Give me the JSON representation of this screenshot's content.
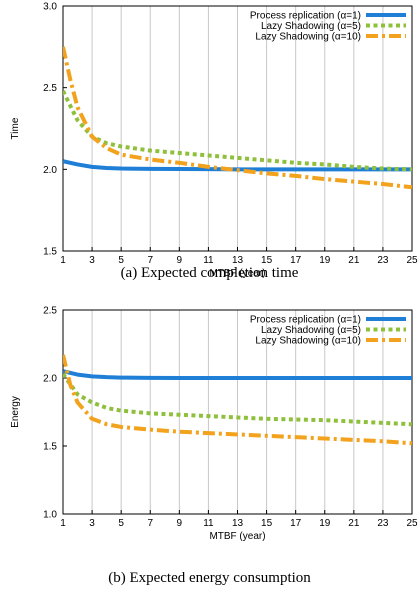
{
  "chart_data": [
    {
      "type": "line",
      "caption": "(a) Expected completion time",
      "xlabel": "MTBF (year)",
      "ylabel": "Time",
      "xlim": [
        1,
        25
      ],
      "ylim": [
        1.5,
        3.0
      ],
      "xticks": [
        "1",
        "3",
        "5",
        "7",
        "9",
        "11",
        "13",
        "15",
        "17",
        "19",
        "21",
        "23",
        "25"
      ],
      "yticks": [
        "1.5",
        "2.0",
        "2.5",
        "3.0"
      ],
      "grid": "vertical",
      "legend": "top-right",
      "series": [
        {
          "name": "Process replication (α=1)",
          "color": "#1f7fd6",
          "style": "solid",
          "x": [
            1,
            2,
            3,
            4,
            5,
            7,
            9,
            11,
            13,
            15,
            17,
            19,
            21,
            23,
            25
          ],
          "y": [
            2.05,
            2.03,
            2.015,
            2.008,
            2.005,
            2.003,
            2.002,
            2.001,
            2.0,
            2.0,
            2.0,
            2.0,
            2.0,
            2.0,
            2.0
          ]
        },
        {
          "name": "Lazy Shadowing (α=5)",
          "color": "#8fc03c",
          "style": "dotted",
          "x": [
            1,
            2,
            3,
            4,
            5,
            7,
            9,
            11,
            13,
            15,
            17,
            19,
            21,
            23,
            25
          ],
          "y": [
            2.48,
            2.3,
            2.2,
            2.16,
            2.14,
            2.115,
            2.1,
            2.085,
            2.07,
            2.055,
            2.04,
            2.03,
            2.015,
            2.005,
            2.0
          ]
        },
        {
          "name": "Lazy Shadowing (α=10)",
          "color": "#f2a21c",
          "style": "dashdot",
          "x": [
            1,
            1.5,
            2,
            3,
            4,
            5,
            7,
            9,
            11,
            13,
            15,
            17,
            19,
            21,
            23,
            25
          ],
          "y": [
            2.75,
            2.55,
            2.38,
            2.2,
            2.13,
            2.09,
            2.06,
            2.04,
            2.015,
            1.995,
            1.975,
            1.96,
            1.94,
            1.925,
            1.91,
            1.89
          ]
        }
      ]
    },
    {
      "type": "line",
      "caption": "(b) Expected energy consumption",
      "xlabel": "MTBF (year)",
      "ylabel": "Energy",
      "xlim": [
        1,
        25
      ],
      "ylim": [
        1.0,
        2.5
      ],
      "xticks": [
        "1",
        "3",
        "5",
        "7",
        "9",
        "11",
        "13",
        "15",
        "17",
        "19",
        "21",
        "23",
        "25"
      ],
      "yticks": [
        "1.0",
        "1.5",
        "2.0",
        "2.5"
      ],
      "grid": "vertical",
      "legend": "top-right",
      "series": [
        {
          "name": "Process replication (α=1)",
          "color": "#1f7fd6",
          "style": "solid",
          "x": [
            1,
            2,
            3,
            4,
            5,
            7,
            9,
            11,
            13,
            15,
            17,
            19,
            21,
            23,
            25
          ],
          "y": [
            2.05,
            2.025,
            2.012,
            2.006,
            2.003,
            2.001,
            2.0,
            2.0,
            2.0,
            2.0,
            2.0,
            2.0,
            2.0,
            2.0,
            2.0
          ]
        },
        {
          "name": "Lazy Shadowing (α=5)",
          "color": "#8fc03c",
          "style": "dotted",
          "x": [
            1,
            2,
            3,
            4,
            5,
            7,
            9,
            11,
            13,
            15,
            17,
            19,
            21,
            23,
            25
          ],
          "y": [
            2.03,
            1.88,
            1.82,
            1.78,
            1.76,
            1.74,
            1.73,
            1.72,
            1.71,
            1.7,
            1.695,
            1.69,
            1.68,
            1.67,
            1.66
          ]
        },
        {
          "name": "Lazy Shadowing (α=10)",
          "color": "#f2a21c",
          "style": "dashdot",
          "x": [
            1,
            1.5,
            2,
            3,
            4,
            5,
            7,
            9,
            11,
            13,
            15,
            17,
            19,
            21,
            23,
            25
          ],
          "y": [
            2.17,
            1.95,
            1.82,
            1.7,
            1.66,
            1.64,
            1.62,
            1.605,
            1.595,
            1.585,
            1.575,
            1.565,
            1.555,
            1.545,
            1.535,
            1.52
          ]
        }
      ]
    }
  ]
}
